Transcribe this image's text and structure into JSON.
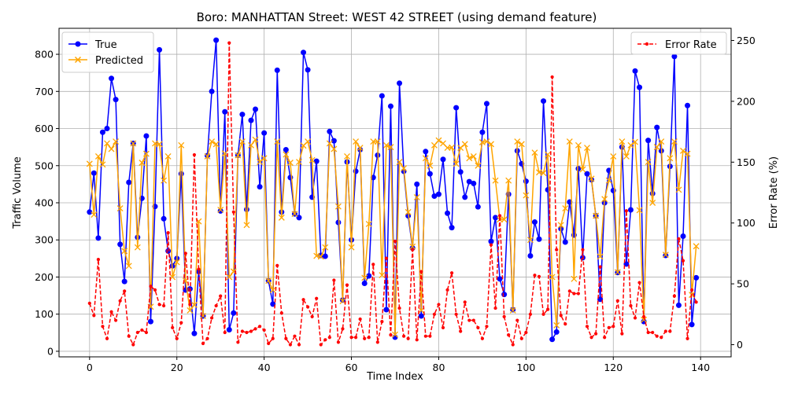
{
  "chart_data": {
    "type": "line",
    "title": "Boro: MANHATTAN Street: WEST 42 STREET (using demand feature)",
    "xlabel": "Time Index",
    "ylabel": "Traffic Volume",
    "y2label": "Error Rate (%)",
    "xlim": [
      -7,
      147
    ],
    "ylim": [
      -15,
      870
    ],
    "y2lim": [
      -10,
      260
    ],
    "xticks": [
      0,
      20,
      40,
      60,
      80,
      100,
      120,
      140
    ],
    "yticks": [
      0,
      100,
      200,
      300,
      400,
      500,
      600,
      700,
      800
    ],
    "y2ticks": [
      0,
      50,
      100,
      150,
      200,
      250
    ],
    "grid": true,
    "legend_left": "top-left",
    "legend_right": "top-right",
    "series": [
      {
        "name": "True",
        "axis": "left",
        "color": "#0000ff",
        "marker": "circle",
        "values": [
          375,
          480,
          305,
          590,
          600,
          735,
          678,
          288,
          188,
          455,
          560,
          307,
          412,
          580,
          80,
          390,
          812,
          357,
          270,
          230,
          250,
          478,
          165,
          168,
          48,
          215,
          95,
          527,
          700,
          838,
          378,
          645,
          58,
          103,
          528,
          638,
          382,
          622,
          652,
          443,
          588,
          190,
          127,
          757,
          375,
          543,
          468,
          370,
          360,
          805,
          758,
          415,
          512,
          258,
          256,
          592,
          567,
          347,
          138,
          510,
          300,
          485,
          543,
          183,
          203,
          468,
          528,
          688,
          112,
          660,
          38,
          722,
          485,
          365,
          278,
          450,
          95,
          538,
          478,
          418,
          423,
          517,
          372,
          333,
          656,
          483,
          415,
          457,
          452,
          389,
          590,
          667,
          296,
          360,
          195,
          153,
          423,
          112,
          540,
          505,
          458,
          257,
          348,
          302,
          674,
          435,
          32,
          52,
          330,
          294,
          402,
          313,
          492,
          252,
          478,
          462,
          365,
          140,
          400,
          487,
          433,
          212,
          550,
          235,
          381,
          755,
          711,
          80,
          568,
          425,
          603,
          540,
          258,
          498,
          794,
          124,
          310,
          662,
          72,
          198
        ]
      },
      {
        "name": "Predicted",
        "axis": "left",
        "color": "#ffa500",
        "marker": "x",
        "values": [
          505,
          368,
          525,
          503,
          560,
          545,
          565,
          385,
          270,
          230,
          560,
          280,
          508,
          532,
          120,
          560,
          558,
          460,
          525,
          200,
          240,
          555,
          190,
          110,
          125,
          350,
          95,
          525,
          565,
          558,
          381,
          533,
          200,
          215,
          528,
          565,
          340,
          555,
          570,
          510,
          520,
          190,
          165,
          565,
          360,
          530,
          508,
          370,
          510,
          554,
          565,
          515,
          257,
          255,
          280,
          560,
          545,
          390,
          135,
          525,
          280,
          565,
          548,
          198,
          343,
          565,
          565,
          205,
          555,
          550,
          45,
          510,
          493,
          375,
          282,
          415,
          110,
          520,
          500,
          555,
          568,
          560,
          548,
          549,
          505,
          548,
          558,
          520,
          525,
          500,
          563,
          565,
          558,
          460,
          355,
          355,
          460,
          110,
          565,
          558,
          420,
          300,
          535,
          482,
          480,
          530,
          200,
          70,
          340,
          385,
          565,
          195,
          555,
          490,
          548,
          465,
          365,
          255,
          410,
          460,
          525,
          213,
          565,
          525,
          555,
          564,
          380,
          85,
          510,
          400,
          550,
          565,
          260,
          520,
          565,
          435,
          540,
          532,
          152,
          283
        ]
      },
      {
        "name": "Error Rate",
        "axis": "right",
        "color": "#ff0000",
        "marker": "dot",
        "dashed": true,
        "values": [
          34,
          24,
          70,
          15,
          5,
          27,
          20,
          36,
          44,
          7,
          0,
          10,
          12,
          10,
          48,
          45,
          33,
          32,
          92,
          14,
          5,
          18,
          75,
          33,
          156,
          62,
          1,
          5,
          22,
          32,
          40,
          10,
          248,
          109,
          2,
          11,
          10,
          11,
          13,
          15,
          12,
          1,
          5,
          65,
          26,
          5,
          0,
          7,
          0,
          37,
          31,
          23,
          38,
          0,
          4,
          6,
          53,
          2,
          13,
          49,
          6,
          6,
          21,
          5,
          6,
          66,
          2,
          19,
          71,
          8,
          85,
          30,
          7,
          5,
          78,
          4,
          60,
          7,
          7,
          25,
          33,
          14,
          45,
          59,
          25,
          11,
          35,
          20,
          20,
          14,
          5,
          15,
          82,
          30,
          106,
          23,
          8,
          0,
          20,
          5,
          10,
          25,
          57,
          56,
          25,
          29,
          220,
          78,
          24,
          17,
          44,
          42,
          42,
          78,
          15,
          6,
          9,
          64,
          6,
          14,
          15,
          36,
          9,
          110,
          32,
          22,
          51,
          23,
          10,
          10,
          7,
          6,
          11,
          11,
          40,
          87,
          69,
          5,
          45,
          35
        ]
      }
    ]
  }
}
